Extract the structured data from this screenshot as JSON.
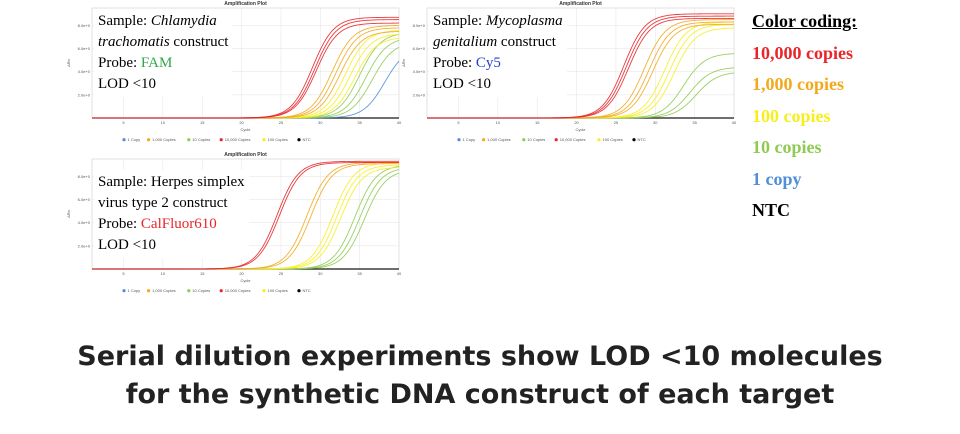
{
  "colors": {
    "c10000": "#e8262a",
    "c1000": "#f2a91d",
    "c100": "#f7ee1e",
    "c10": "#8fcb52",
    "c1": "#4f8fd8",
    "ntc": "#000000",
    "grid": "#e3e3e3"
  },
  "legend": {
    "title": "Color coding:",
    "items": [
      {
        "label": "10,000 copies",
        "color": "#e8262a"
      },
      {
        "label": "1,000 copies",
        "color": "#f2a91d"
      },
      {
        "label": "100 copies",
        "color": "#f7ee1e"
      },
      {
        "label": "10 copies",
        "color": "#8fcb52"
      },
      {
        "label": "1 copy",
        "color": "#4f8fd8"
      },
      {
        "label": "NTC",
        "color": "#000000"
      }
    ]
  },
  "caption": {
    "line1": "Serial dilution experiments show LOD <10 molecules",
    "line2": "for the synthetic DNA construct of each target"
  },
  "panels": [
    {
      "sample_prefix": "Sample: ",
      "sample_italic": "Chlamydia",
      "sample_italic2": "trachomatis",
      "sample_suffix": " construct",
      "probe_prefix": "Probe: ",
      "probe": "FAM",
      "probe_color": "#2ea84a",
      "lod": "LOD <10"
    },
    {
      "sample_prefix": "Sample: ",
      "sample_italic": "Mycoplasma",
      "sample_italic2": "genitalium",
      "sample_suffix": " construct",
      "probe_prefix": "Probe: ",
      "probe": "Cy5",
      "probe_color": "#2a3fd0",
      "lod": "LOD <10"
    },
    {
      "sample_line1": "Sample: Herpes simplex",
      "sample_line2": "virus type 2 construct",
      "probe_prefix": "Probe: ",
      "probe": "CalFluor610",
      "probe_color": "#e8262a",
      "lod": "LOD <10"
    }
  ],
  "chart_data": [
    {
      "type": "line",
      "title": "Amplification Plot",
      "xlabel": "Cycle",
      "ylabel": "ΔRn",
      "x_ticks": [
        5,
        10,
        15,
        20,
        25,
        30,
        35,
        40
      ],
      "y_ticks": [
        "2.0e+0",
        "4.0e+0",
        "6.0e+0",
        "8.0e+0"
      ],
      "xlim": [
        1,
        40
      ],
      "ylim": [
        0,
        9.5
      ],
      "legend_entries": [
        "1 Copy",
        "1,000 Copies",
        "10 Copies",
        "10,000 Copies",
        "100 Copies",
        "NTC"
      ],
      "series": [
        {
          "name": "10,000 Copies",
          "color_key": "c10000",
          "curves": [
            {
              "ct": 29.0,
              "plateau": 8.7
            },
            {
              "ct": 29.3,
              "plateau": 8.5
            },
            {
              "ct": 29.5,
              "plateau": 8.2
            }
          ]
        },
        {
          "name": "1,000 Copies",
          "color_key": "c1000",
          "curves": [
            {
              "ct": 31.5,
              "plateau": 8.0
            },
            {
              "ct": 32.0,
              "plateau": 7.8
            },
            {
              "ct": 32.5,
              "plateau": 7.5
            }
          ]
        },
        {
          "name": "100 Copies",
          "color_key": "c100",
          "curves": [
            {
              "ct": 33.2,
              "plateau": 7.6
            },
            {
              "ct": 33.8,
              "plateau": 7.3
            },
            {
              "ct": 34.4,
              "plateau": 7.0
            }
          ]
        },
        {
          "name": "10 Copies",
          "color_key": "c10",
          "curves": [
            {
              "ct": 35.0,
              "plateau": 7.4
            },
            {
              "ct": 35.8,
              "plateau": 7.0
            },
            {
              "ct": 36.6,
              "plateau": 6.6
            }
          ]
        },
        {
          "name": "1 Copy",
          "color_key": "c1",
          "curves": [
            {
              "ct": 38.2,
              "plateau": 6.2
            }
          ]
        },
        {
          "name": "NTC",
          "color_key": "ntc",
          "curves": [
            {
              "ct": 99,
              "plateau": 0
            }
          ]
        }
      ]
    },
    {
      "type": "line",
      "title": "Amplification Plot",
      "xlabel": "Cycle",
      "ylabel": "ΔRn",
      "x_ticks": [
        5,
        10,
        15,
        20,
        25,
        30,
        35,
        40
      ],
      "y_ticks": [
        "2.0e+0",
        "4.0e+0",
        "6.0e+0",
        "8.0e+0"
      ],
      "xlim": [
        1,
        40
      ],
      "ylim": [
        0,
        9.5
      ],
      "legend_entries": [
        "1 Copy",
        "1,000 Copies",
        "10 Copies",
        "10,000 Copies",
        "100 Copies",
        "NTC"
      ],
      "series": [
        {
          "name": "10,000 Copies",
          "color_key": "c10000",
          "curves": [
            {
              "ct": 26.0,
              "plateau": 9.0
            },
            {
              "ct": 26.3,
              "plateau": 8.8
            },
            {
              "ct": 26.6,
              "plateau": 8.6
            }
          ]
        },
        {
          "name": "1,000 Copies",
          "color_key": "c1000",
          "curves": [
            {
              "ct": 28.6,
              "plateau": 8.5
            },
            {
              "ct": 29.2,
              "plateau": 8.3
            },
            {
              "ct": 29.7,
              "plateau": 8.1
            }
          ]
        },
        {
          "name": "100 Copies",
          "color_key": "c100",
          "curves": [
            {
              "ct": 31.2,
              "plateau": 8.3
            },
            {
              "ct": 31.8,
              "plateau": 8.1
            },
            {
              "ct": 32.4,
              "plateau": 7.8
            }
          ]
        },
        {
          "name": "10 Copies",
          "color_key": "c10",
          "curves": [
            {
              "ct": 33.6,
              "plateau": 5.6
            },
            {
              "ct": 34.4,
              "plateau": 4.4
            },
            {
              "ct": 35.2,
              "plateau": 4.0
            }
          ]
        },
        {
          "name": "NTC",
          "color_key": "ntc",
          "curves": [
            {
              "ct": 99,
              "plateau": 0
            }
          ]
        }
      ]
    },
    {
      "type": "line",
      "title": "Amplification Plot",
      "xlabel": "Cycle",
      "ylabel": "ΔRn",
      "x_ticks": [
        5,
        10,
        15,
        20,
        25,
        30,
        35,
        40
      ],
      "y_ticks": [
        "2.0e+0",
        "4.0e+0",
        "6.0e+0",
        "8.0e+0"
      ],
      "xlim": [
        1,
        40
      ],
      "ylim": [
        0,
        9.5
      ],
      "legend_entries": [
        "1 Copy",
        "1,000 Copies",
        "10 Copies",
        "10,000 Copies",
        "100 Copies",
        "NTC"
      ],
      "series": [
        {
          "name": "10,000 Copies",
          "color_key": "c10000",
          "curves": [
            {
              "ct": 24.5,
              "plateau": 9.3
            },
            {
              "ct": 24.8,
              "plateau": 9.2
            }
          ]
        },
        {
          "name": "1,000 Copies",
          "color_key": "c1000",
          "curves": [
            {
              "ct": 28.3,
              "plateau": 9.2
            },
            {
              "ct": 28.8,
              "plateau": 9.1
            }
          ]
        },
        {
          "name": "100 Copies",
          "color_key": "c100",
          "curves": [
            {
              "ct": 31.6,
              "plateau": 9.2
            },
            {
              "ct": 32.1,
              "plateau": 9.0
            },
            {
              "ct": 32.6,
              "plateau": 8.8
            }
          ]
        },
        {
          "name": "10 Copies",
          "color_key": "c10",
          "curves": [
            {
              "ct": 34.4,
              "plateau": 9.0
            },
            {
              "ct": 35.0,
              "plateau": 8.8
            },
            {
              "ct": 35.6,
              "plateau": 8.6
            }
          ]
        },
        {
          "name": "NTC",
          "color_key": "ntc",
          "curves": [
            {
              "ct": 99,
              "plateau": 0
            }
          ]
        }
      ]
    }
  ]
}
